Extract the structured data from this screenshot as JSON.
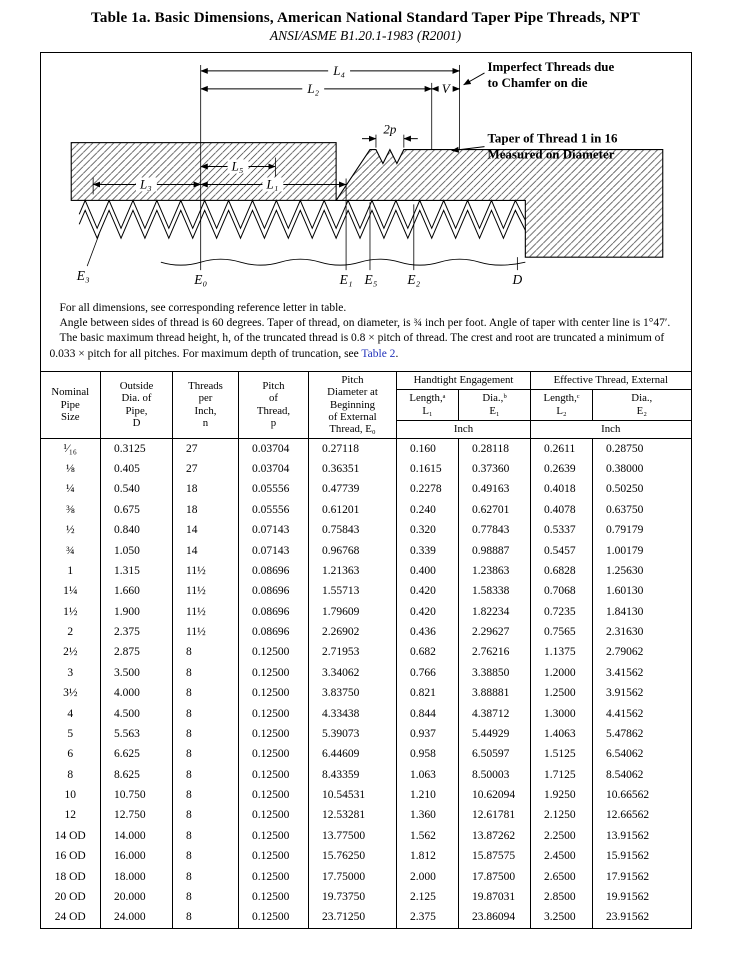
{
  "title": {
    "line1": "Table 1a.  Basic Dimensions, American National Standard Taper Pipe Threads, NPT",
    "line2": "ANSI/ASME B1.20.1-1983 (R2001)"
  },
  "diagram": {
    "dims": {
      "L4": "L₄",
      "L2": "L₂",
      "L5": "L₅",
      "L3": "L₃",
      "L1": "L₁",
      "V": "V",
      "twop": "2p"
    },
    "refs": {
      "E3": "E₃",
      "E0": "E₀",
      "E1": "E₁",
      "E5": "E₅",
      "E2": "E₂",
      "D": "D"
    },
    "callouts": {
      "imperfect1": "Imperfect Threads due",
      "imperfect2": "to Chamfer on die",
      "taper1": "Taper of Thread 1 in 16",
      "taper2": "Measured on Diameter"
    }
  },
  "notes": {
    "note1": "For all dimensions, see corresponding reference letter in table.",
    "note2": "Angle between sides of thread is 60 degrees. Taper of thread, on diameter, is ¾ inch per foot. Angle of taper with center line is 1°47′.",
    "note3_pre": "The basic maximum thread height, h, of the truncated thread is 0.8 × pitch of thread. The crest and root are truncated a minimum of 0.033 × pitch for all pitches. For maximum depth of truncation, see ",
    "note3_link": "Table 2",
    "note3_post": "."
  },
  "table": {
    "headers": {
      "nominal": "Nominal\nPipe\nSize",
      "od": "Outside\nDia. of\nPipe,\nD",
      "tpi": "Threads\nper\nInch,\nn",
      "pitch": "Pitch\nof\nThread,\np",
      "pd": "Pitch\nDiameter at\nBeginning\nof External\nThread, E₀",
      "handtight": "Handtight Engagement",
      "effective": "Effective Thread, External",
      "ht_len": "Length,ᵃ\nL₁",
      "ht_dia": "Dia.,ᵇ\nE₁",
      "ef_len": "Length,ᶜ\nL₂",
      "ef_dia": "Dia.,\nE₂",
      "unit": "Inch"
    },
    "rows": [
      [
        "¹⁄₁₆",
        "0.3125",
        "27",
        "0.03704",
        "0.27118",
        "0.160",
        "0.28118",
        "0.2611",
        "0.28750"
      ],
      [
        "⅛",
        "0.405",
        "27",
        "0.03704",
        "0.36351",
        "0.1615",
        "0.37360",
        "0.2639",
        "0.38000"
      ],
      [
        "¼",
        "0.540",
        "18",
        "0.05556",
        "0.47739",
        "0.2278",
        "0.49163",
        "0.4018",
        "0.50250"
      ],
      [
        "⅜",
        "0.675",
        "18",
        "0.05556",
        "0.61201",
        "0.240",
        "0.62701",
        "0.4078",
        "0.63750"
      ],
      [
        "½",
        "0.840",
        "14",
        "0.07143",
        "0.75843",
        "0.320",
        "0.77843",
        "0.5337",
        "0.79179"
      ],
      [
        "¾",
        "1.050",
        "14",
        "0.07143",
        "0.96768",
        "0.339",
        "0.98887",
        "0.5457",
        "1.00179"
      ],
      [
        "1",
        "1.315",
        "11½",
        "0.08696",
        "1.21363",
        "0.400",
        "1.23863",
        "0.6828",
        "1.25630"
      ],
      [
        "1¼",
        "1.660",
        "11½",
        "0.08696",
        "1.55713",
        "0.420",
        "1.58338",
        "0.7068",
        "1.60130"
      ],
      [
        "1½",
        "1.900",
        "11½",
        "0.08696",
        "1.79609",
        "0.420",
        "1.82234",
        "0.7235",
        "1.84130"
      ],
      [
        "2",
        "2.375",
        "11½",
        "0.08696",
        "2.26902",
        "0.436",
        "2.29627",
        "0.7565",
        "2.31630"
      ],
      [
        "2½",
        "2.875",
        "8",
        "0.12500",
        "2.71953",
        "0.682",
        "2.76216",
        "1.1375",
        "2.79062"
      ],
      [
        "3",
        "3.500",
        "8",
        "0.12500",
        "3.34062",
        "0.766",
        "3.38850",
        "1.2000",
        "3.41562"
      ],
      [
        "3½",
        "4.000",
        "8",
        "0.12500",
        "3.83750",
        "0.821",
        "3.88881",
        "1.2500",
        "3.91562"
      ],
      [
        "4",
        "4.500",
        "8",
        "0.12500",
        "4.33438",
        "0.844",
        "4.38712",
        "1.3000",
        "4.41562"
      ],
      [
        "5",
        "5.563",
        "8",
        "0.12500",
        "5.39073",
        "0.937",
        "5.44929",
        "1.4063",
        "5.47862"
      ],
      [
        "6",
        "6.625",
        "8",
        "0.12500",
        "6.44609",
        "0.958",
        "6.50597",
        "1.5125",
        "6.54062"
      ],
      [
        "8",
        "8.625",
        "8",
        "0.12500",
        "8.43359",
        "1.063",
        "8.50003",
        "1.7125",
        "8.54062"
      ],
      [
        "10",
        "10.750",
        "8",
        "0.12500",
        "10.54531",
        "1.210",
        "10.62094",
        "1.9250",
        "10.66562"
      ],
      [
        "12",
        "12.750",
        "8",
        "0.12500",
        "12.53281",
        "1.360",
        "12.61781",
        "2.1250",
        "12.66562"
      ],
      [
        "14 OD",
        "14.000",
        "8",
        "0.12500",
        "13.77500",
        "1.562",
        "13.87262",
        "2.2500",
        "13.91562"
      ],
      [
        "16 OD",
        "16.000",
        "8",
        "0.12500",
        "15.76250",
        "1.812",
        "15.87575",
        "2.4500",
        "15.91562"
      ],
      [
        "18 OD",
        "18.000",
        "8",
        "0.12500",
        "17.75000",
        "2.000",
        "17.87500",
        "2.6500",
        "17.91562"
      ],
      [
        "20 OD",
        "20.000",
        "8",
        "0.12500",
        "19.73750",
        "2.125",
        "19.87031",
        "2.8500",
        "19.91562"
      ],
      [
        "24 OD",
        "24.000",
        "8",
        "0.12500",
        "23.71250",
        "2.375",
        "23.86094",
        "3.2500",
        "23.91562"
      ]
    ]
  }
}
